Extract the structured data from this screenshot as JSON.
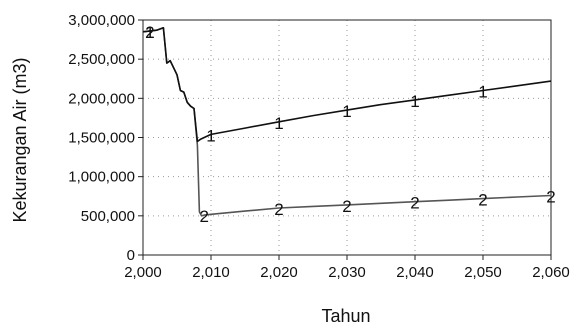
{
  "chart_data": {
    "type": "line",
    "xlabel": "Tahun",
    "ylabel": "Kekurangan Air (m3)",
    "xlim": [
      2000,
      2060
    ],
    "ylim": [
      0,
      3000000
    ],
    "grid": true,
    "x_ticks": [
      2000,
      2010,
      2020,
      2030,
      2040,
      2050,
      2060
    ],
    "x_tick_labels": [
      "2,000",
      "2,010",
      "2,020",
      "2,030",
      "2,040",
      "2,050",
      "2,060"
    ],
    "y_ticks": [
      0,
      500000,
      1000000,
      1500000,
      2000000,
      2500000,
      3000000
    ],
    "y_tick_labels": [
      "0",
      "500,000",
      "1,000,000",
      "1,500,000",
      "2,000,000",
      "2,500,000",
      "3,000,000"
    ],
    "series": [
      {
        "marker_label": "1",
        "color": "#111111",
        "x": [
          2000,
          2002,
          2003,
          2003.5,
          2004,
          2005,
          2005.5,
          2006,
          2006.5,
          2007,
          2007.5,
          2008,
          2008.5,
          2009,
          2010,
          2015,
          2020,
          2025,
          2030,
          2035,
          2040,
          2045,
          2050,
          2055,
          2060
        ],
        "values": [
          2850000,
          2870000,
          2900000,
          2450000,
          2480000,
          2300000,
          2100000,
          2080000,
          1950000,
          1900000,
          1870000,
          1450000,
          1480000,
          1500000,
          1540000,
          1620000,
          1700000,
          1780000,
          1850000,
          1920000,
          1980000,
          2040000,
          2100000,
          2160000,
          2220000
        ],
        "marker_x": [
          2001,
          2010,
          2020,
          2030,
          2040,
          2050
        ]
      },
      {
        "marker_label": "2",
        "color": "#555555",
        "x": [
          2000,
          2002,
          2003,
          2003.5,
          2004,
          2005,
          2005.5,
          2006,
          2006.5,
          2007,
          2007.5,
          2008,
          2008.3,
          2008.6,
          2009,
          2010,
          2015,
          2020,
          2025,
          2030,
          2035,
          2040,
          2045,
          2050,
          2055,
          2060
        ],
        "values": [
          2850000,
          2870000,
          2900000,
          2450000,
          2480000,
          2300000,
          2100000,
          2080000,
          1950000,
          1900000,
          1870000,
          1400000,
          550000,
          500000,
          510000,
          520000,
          560000,
          600000,
          620000,
          640000,
          660000,
          680000,
          700000,
          720000,
          740000,
          760000
        ],
        "marker_x": [
          2001,
          2009,
          2020,
          2030,
          2040,
          2050,
          2060
        ]
      }
    ]
  }
}
